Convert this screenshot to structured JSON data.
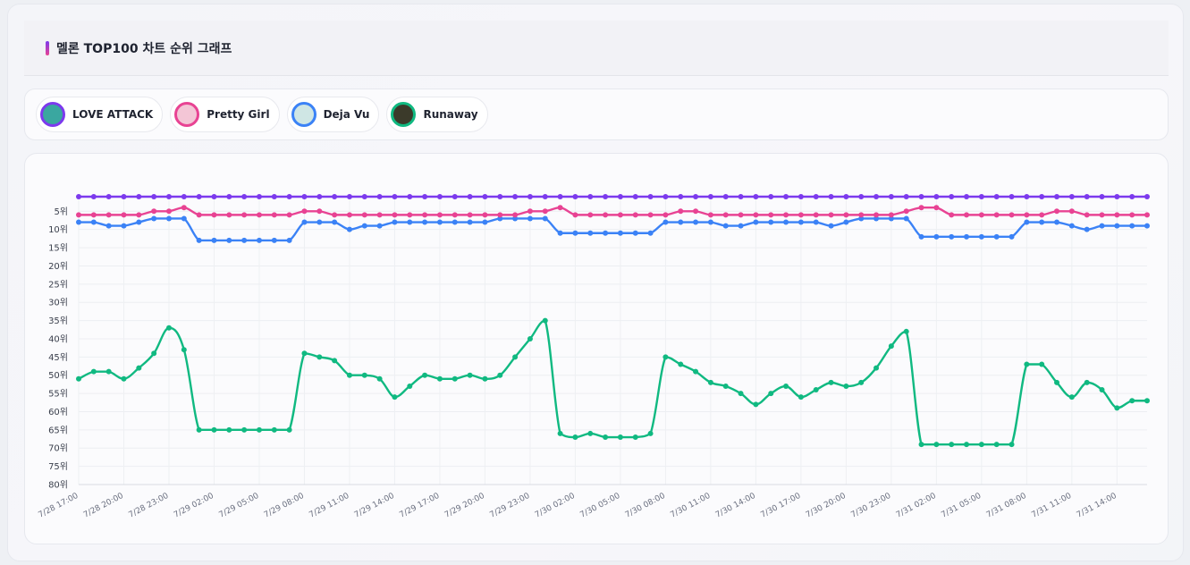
{
  "page": {
    "title": "멜론 TOP100 차트 순위 그래프"
  },
  "legend": [
    {
      "name": "LOVE ATTACK",
      "color": "#7c3aed",
      "icon": "album-cover-love-attack-icon",
      "thumb": "#3aa7a0"
    },
    {
      "name": "Pretty Girl",
      "color": "#e84393",
      "icon": "album-cover-pretty-girl-icon",
      "thumb": "#f3c6d6"
    },
    {
      "name": "Deja Vu",
      "color": "#3b82f6",
      "icon": "album-cover-deja-vu-icon",
      "thumb": "#cfe6e4"
    },
    {
      "name": "Runaway",
      "color": "#10b981",
      "icon": "album-cover-runaway-icon",
      "thumb": "#3b3a2a"
    }
  ],
  "chart_data": {
    "type": "line",
    "title": "멜론 TOP100 차트 순위 그래프",
    "xlabel": "",
    "ylabel": "",
    "ylim": [
      1,
      80
    ],
    "y_inverted": true,
    "y_ticks": [
      5,
      10,
      15,
      20,
      25,
      30,
      35,
      40,
      45,
      50,
      55,
      60,
      65,
      70,
      75,
      80
    ],
    "y_tick_suffix": "위",
    "grid": true,
    "x_start": "7/28 17:00",
    "x_step_hours": 1,
    "x_tick_labels": [
      "7/28 17:00",
      "7/28 20:00",
      "7/28 23:00",
      "7/29 02:00",
      "7/29 05:00",
      "7/29 08:00",
      "7/29 11:00",
      "7/29 14:00",
      "7/29 17:00",
      "7/29 20:00",
      "7/29 23:00",
      "7/30 02:00",
      "7/30 05:00",
      "7/30 08:00",
      "7/30 11:00",
      "7/30 14:00",
      "7/30 17:00",
      "7/30 20:00",
      "7/30 23:00",
      "7/31 02:00",
      "7/31 05:00",
      "7/31 08:00",
      "7/31 11:00",
      "7/31 14:00"
    ],
    "series": [
      {
        "name": "LOVE ATTACK",
        "color": "#7c3aed",
        "values": [
          1,
          1,
          1,
          1,
          1,
          1,
          1,
          1,
          1,
          1,
          1,
          1,
          1,
          1,
          1,
          1,
          1,
          1,
          1,
          1,
          1,
          1,
          1,
          1,
          1,
          1,
          1,
          1,
          1,
          1,
          1,
          1,
          1,
          1,
          1,
          1,
          1,
          1,
          1,
          1,
          1,
          1,
          1,
          1,
          1,
          1,
          1,
          1,
          1,
          1,
          1,
          1,
          1,
          1,
          1,
          1,
          1,
          1,
          1,
          1,
          1,
          1,
          1,
          1,
          1,
          1,
          1,
          1,
          1,
          1,
          1,
          1
        ]
      },
      {
        "name": "Pretty Girl",
        "color": "#e84393",
        "values": [
          6,
          6,
          6,
          6,
          6,
          5,
          5,
          4,
          6,
          6,
          6,
          6,
          6,
          6,
          6,
          5,
          5,
          6,
          6,
          6,
          6,
          6,
          6,
          6,
          6,
          6,
          6,
          6,
          6,
          6,
          5,
          5,
          4,
          6,
          6,
          6,
          6,
          6,
          6,
          6,
          5,
          5,
          6,
          6,
          6,
          6,
          6,
          6,
          6,
          6,
          6,
          6,
          6,
          6,
          6,
          5,
          4,
          4,
          6,
          6,
          6,
          6,
          6,
          6,
          6,
          5,
          5,
          6,
          6,
          6,
          6,
          6
        ]
      },
      {
        "name": "Deja Vu",
        "color": "#3b82f6",
        "values": [
          8,
          8,
          9,
          9,
          8,
          7,
          7,
          7,
          13,
          13,
          13,
          13,
          13,
          13,
          13,
          8,
          8,
          8,
          10,
          9,
          9,
          8,
          8,
          8,
          8,
          8,
          8,
          8,
          7,
          7,
          7,
          7,
          11,
          11,
          11,
          11,
          11,
          11,
          11,
          8,
          8,
          8,
          8,
          9,
          9,
          8,
          8,
          8,
          8,
          8,
          9,
          8,
          7,
          7,
          7,
          7,
          12,
          12,
          12,
          12,
          12,
          12,
          12,
          8,
          8,
          8,
          9,
          10,
          9,
          9,
          9,
          9
        ]
      },
      {
        "name": "Runaway",
        "color": "#10b981",
        "values": [
          51,
          49,
          49,
          51,
          48,
          44,
          37,
          43,
          65,
          65,
          65,
          65,
          65,
          65,
          65,
          44,
          45,
          46,
          50,
          50,
          51,
          56,
          53,
          50,
          51,
          51,
          50,
          51,
          50,
          45,
          40,
          35,
          66,
          67,
          66,
          67,
          67,
          67,
          66,
          45,
          47,
          49,
          52,
          53,
          55,
          58,
          55,
          53,
          56,
          54,
          52,
          53,
          52,
          48,
          42,
          38,
          69,
          69,
          69,
          69,
          69,
          69,
          69,
          47,
          47,
          52,
          56,
          52,
          54,
          59,
          57,
          57
        ]
      }
    ]
  }
}
